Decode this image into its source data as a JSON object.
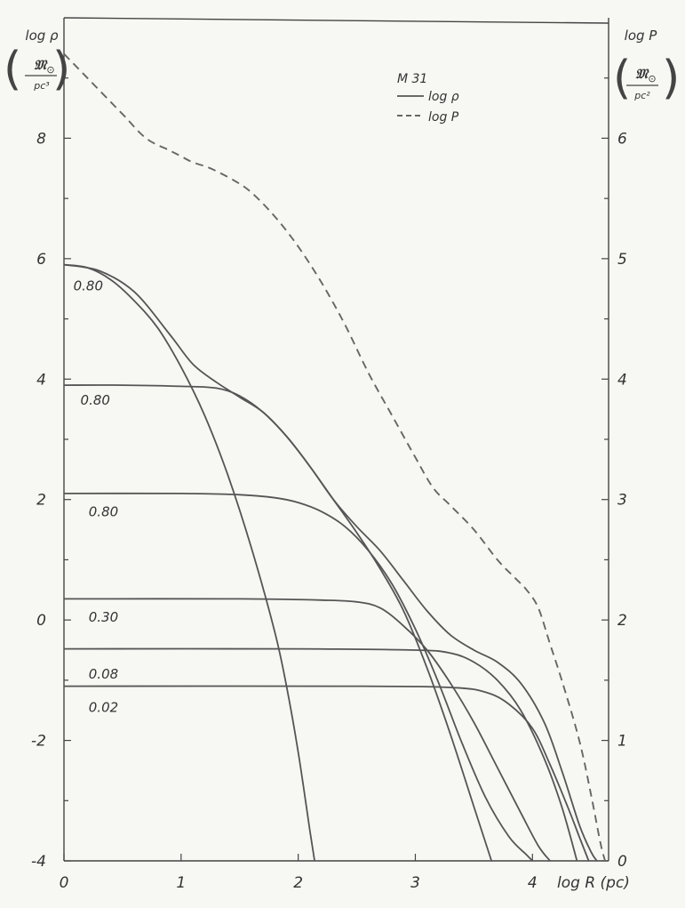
{
  "figure": {
    "left_axis": {
      "title": "log ρ",
      "unit_top": "𝔐",
      "unit_sub": "⊙",
      "unit_bottom": "pc³"
    },
    "right_axis": {
      "title": "log P",
      "unit_top": "𝔐",
      "unit_sub": "⊙",
      "unit_bottom": "pc²"
    },
    "x_axis_label": "log R (pc)",
    "legend": {
      "title": "M 31",
      "entries": [
        {
          "label": "log ρ",
          "style": "solid"
        },
        {
          "label": "log P",
          "style": "dashed"
        }
      ]
    }
  },
  "chart_data": {
    "type": "line",
    "title": "",
    "xlabel": "log R (pc)",
    "ylabel": "log ρ",
    "y2label": "log P",
    "xlim": [
      0,
      4.65
    ],
    "ylim": [
      -4,
      10
    ],
    "y2lim": [
      0,
      7
    ],
    "x_ticks": [
      "0",
      "1",
      "2",
      "3",
      "4"
    ],
    "x_tick_values": [
      0,
      1,
      2,
      3,
      4
    ],
    "y_ticks": [
      "-4",
      "-2",
      "0",
      "2",
      "4",
      "6",
      "8"
    ],
    "y_tick_values": [
      -4,
      -2,
      0,
      2,
      4,
      6,
      8
    ],
    "y2_ticks": [
      "0",
      "1",
      "2",
      "3",
      "4",
      "5",
      "6"
    ],
    "y2_tick_values": [
      0,
      1,
      2,
      3,
      4,
      5,
      6
    ],
    "grid": false,
    "legend_position": "top-right",
    "series": [
      {
        "name": "log ρ",
        "axis": "left",
        "style": "solid",
        "role": "total",
        "points": [
          [
            0,
            5.9
          ],
          [
            0.3,
            5.8
          ],
          [
            0.6,
            5.45
          ],
          [
            0.9,
            4.75
          ],
          [
            1.1,
            4.25
          ],
          [
            1.3,
            3.95
          ],
          [
            1.5,
            3.7
          ],
          [
            1.7,
            3.45
          ],
          [
            1.9,
            3.05
          ],
          [
            2.1,
            2.55
          ],
          [
            2.3,
            2.0
          ],
          [
            2.5,
            1.55
          ],
          [
            2.7,
            1.15
          ],
          [
            2.9,
            0.65
          ],
          [
            3.1,
            0.15
          ],
          [
            3.3,
            -0.25
          ],
          [
            3.5,
            -0.5
          ],
          [
            3.7,
            -0.7
          ],
          [
            3.9,
            -1.05
          ],
          [
            4.1,
            -1.7
          ],
          [
            4.25,
            -2.5
          ],
          [
            4.4,
            -3.4
          ],
          [
            4.5,
            -3.85
          ],
          [
            4.55,
            -4.0
          ]
        ]
      },
      {
        "name": "log P",
        "axis": "right",
        "style": "dashed",
        "points": [
          [
            0,
            6.7
          ],
          [
            0.2,
            6.5
          ],
          [
            0.5,
            6.2
          ],
          [
            0.7,
            6.0
          ],
          [
            0.9,
            5.9
          ],
          [
            1.0,
            5.85
          ],
          [
            1.1,
            5.8
          ],
          [
            1.25,
            5.75
          ],
          [
            1.45,
            5.65
          ],
          [
            1.6,
            5.55
          ],
          [
            1.8,
            5.35
          ],
          [
            2.0,
            5.1
          ],
          [
            2.2,
            4.8
          ],
          [
            2.4,
            4.45
          ],
          [
            2.6,
            4.05
          ],
          [
            2.8,
            3.7
          ],
          [
            3.0,
            3.35
          ],
          [
            3.15,
            3.1
          ],
          [
            3.3,
            2.95
          ],
          [
            3.5,
            2.75
          ],
          [
            3.7,
            2.5
          ],
          [
            3.85,
            2.35
          ],
          [
            3.95,
            2.25
          ],
          [
            4.05,
            2.1
          ],
          [
            4.15,
            1.8
          ],
          [
            4.25,
            1.5
          ],
          [
            4.4,
            1.0
          ],
          [
            4.5,
            0.55
          ],
          [
            4.58,
            0.15
          ],
          [
            4.62,
            0.0
          ]
        ]
      },
      {
        "name": "",
        "label": "0.80",
        "label_at": [
          0.02,
          5.55
        ],
        "axis": "left",
        "style": "solid",
        "points": [
          [
            0,
            5.9
          ],
          [
            0.2,
            5.85
          ],
          [
            0.4,
            5.65
          ],
          [
            0.6,
            5.3
          ],
          [
            0.8,
            4.85
          ],
          [
            1.0,
            4.2
          ],
          [
            1.2,
            3.4
          ],
          [
            1.4,
            2.4
          ],
          [
            1.6,
            1.2
          ],
          [
            1.8,
            -0.2
          ],
          [
            1.9,
            -1.1
          ],
          [
            2.0,
            -2.2
          ],
          [
            2.1,
            -3.5
          ],
          [
            2.14,
            -4.0
          ]
        ]
      },
      {
        "name": "",
        "label": "0.80",
        "label_at": [
          0.08,
          3.65
        ],
        "axis": "left",
        "style": "solid",
        "points": [
          [
            0,
            3.9
          ],
          [
            0.5,
            3.9
          ],
          [
            1.0,
            3.88
          ],
          [
            1.3,
            3.85
          ],
          [
            1.5,
            3.72
          ],
          [
            1.7,
            3.45
          ],
          [
            1.9,
            3.05
          ],
          [
            2.1,
            2.55
          ],
          [
            2.3,
            2.0
          ],
          [
            2.5,
            1.45
          ],
          [
            2.7,
            0.85
          ],
          [
            2.9,
            0.15
          ],
          [
            3.1,
            -0.8
          ],
          [
            3.3,
            -1.9
          ],
          [
            3.5,
            -3.1
          ],
          [
            3.65,
            -4.0
          ]
        ]
      },
      {
        "name": "",
        "label": "0.80",
        "label_at": [
          0.15,
          1.8
        ],
        "axis": "left",
        "style": "solid",
        "points": [
          [
            0,
            2.1
          ],
          [
            1.0,
            2.1
          ],
          [
            1.5,
            2.08
          ],
          [
            1.8,
            2.03
          ],
          [
            2.0,
            1.95
          ],
          [
            2.2,
            1.8
          ],
          [
            2.4,
            1.55
          ],
          [
            2.6,
            1.15
          ],
          [
            2.8,
            0.6
          ],
          [
            3.0,
            -0.15
          ],
          [
            3.2,
            -1.05
          ],
          [
            3.4,
            -2.05
          ],
          [
            3.6,
            -2.95
          ],
          [
            3.8,
            -3.6
          ],
          [
            3.95,
            -3.9
          ],
          [
            4.0,
            -4.0
          ]
        ]
      },
      {
        "name": "",
        "label": "0.30",
        "label_at": [
          0.15,
          0.05
        ],
        "axis": "left",
        "style": "solid",
        "points": [
          [
            0,
            0.35
          ],
          [
            1.5,
            0.35
          ],
          [
            2.2,
            0.33
          ],
          [
            2.5,
            0.3
          ],
          [
            2.7,
            0.2
          ],
          [
            2.9,
            -0.1
          ],
          [
            3.1,
            -0.5
          ],
          [
            3.3,
            -1.05
          ],
          [
            3.5,
            -1.7
          ],
          [
            3.7,
            -2.45
          ],
          [
            3.9,
            -3.2
          ],
          [
            4.05,
            -3.75
          ],
          [
            4.15,
            -4.0
          ]
        ]
      },
      {
        "name": "",
        "label": "0.08",
        "label_at": [
          0.15,
          -0.9
        ],
        "axis": "left",
        "style": "solid",
        "points": [
          [
            0,
            -0.48
          ],
          [
            2.0,
            -0.48
          ],
          [
            3.0,
            -0.5
          ],
          [
            3.3,
            -0.55
          ],
          [
            3.5,
            -0.7
          ],
          [
            3.7,
            -1.0
          ],
          [
            3.9,
            -1.5
          ],
          [
            4.1,
            -2.3
          ],
          [
            4.25,
            -3.1
          ],
          [
            4.38,
            -4.0
          ]
        ]
      },
      {
        "name": "",
        "label": "0.02",
        "label_at": [
          0.15,
          -1.45
        ],
        "axis": "left",
        "style": "solid",
        "points": [
          [
            0,
            -1.1
          ],
          [
            2.5,
            -1.1
          ],
          [
            3.3,
            -1.12
          ],
          [
            3.6,
            -1.2
          ],
          [
            3.8,
            -1.4
          ],
          [
            4.0,
            -1.8
          ],
          [
            4.15,
            -2.4
          ],
          [
            4.3,
            -3.1
          ],
          [
            4.4,
            -3.6
          ],
          [
            4.48,
            -4.0
          ]
        ]
      }
    ]
  }
}
